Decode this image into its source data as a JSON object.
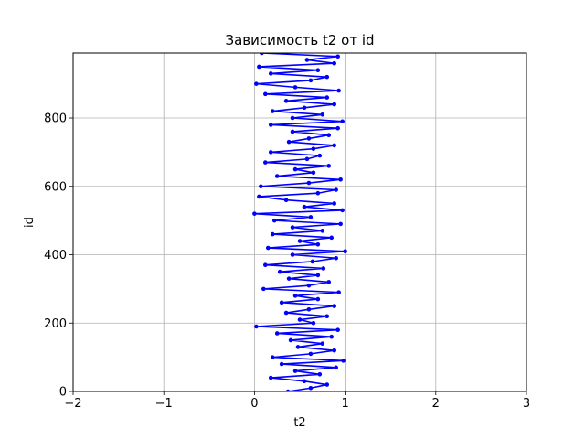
{
  "chart_data": {
    "type": "line",
    "title": "Зависимость t2 от id",
    "xlabel": "t2",
    "ylabel": "id",
    "xlim": [
      -2,
      3
    ],
    "ylim": [
      0,
      990
    ],
    "xticks": [
      -2,
      -1,
      0,
      1,
      2,
      3
    ],
    "xtick_labels": [
      "−2",
      "−1",
      "0",
      "1",
      "2",
      "3"
    ],
    "yticks": [
      0,
      200,
      400,
      600,
      800
    ],
    "ytick_labels": [
      "0",
      "200",
      "400",
      "600",
      "800"
    ],
    "grid": true,
    "series": [
      {
        "name": "",
        "color": "#0000ff",
        "marker": "circle",
        "points": [
          [
            0.37,
            0
          ],
          [
            0.62,
            10
          ],
          [
            0.8,
            20
          ],
          [
            0.55,
            30
          ],
          [
            0.18,
            40
          ],
          [
            0.72,
            50
          ],
          [
            0.45,
            60
          ],
          [
            0.9,
            70
          ],
          [
            0.3,
            80
          ],
          [
            0.98,
            90
          ],
          [
            0.2,
            100
          ],
          [
            0.62,
            110
          ],
          [
            0.88,
            120
          ],
          [
            0.48,
            130
          ],
          [
            0.75,
            140
          ],
          [
            0.4,
            150
          ],
          [
            0.85,
            160
          ],
          [
            0.25,
            170
          ],
          [
            0.92,
            180
          ],
          [
            0.02,
            190
          ],
          [
            0.65,
            200
          ],
          [
            0.5,
            210
          ],
          [
            0.8,
            220
          ],
          [
            0.35,
            230
          ],
          [
            0.6,
            240
          ],
          [
            0.88,
            250
          ],
          [
            0.3,
            260
          ],
          [
            0.7,
            270
          ],
          [
            0.45,
            280
          ],
          [
            0.93,
            290
          ],
          [
            0.1,
            300
          ],
          [
            0.6,
            310
          ],
          [
            0.82,
            320
          ],
          [
            0.38,
            330
          ],
          [
            0.7,
            340
          ],
          [
            0.28,
            350
          ],
          [
            0.76,
            360
          ],
          [
            0.12,
            370
          ],
          [
            0.64,
            380
          ],
          [
            0.9,
            390
          ],
          [
            0.42,
            400
          ],
          [
            1.0,
            410
          ],
          [
            0.15,
            420
          ],
          [
            0.7,
            430
          ],
          [
            0.5,
            440
          ],
          [
            0.85,
            450
          ],
          [
            0.2,
            460
          ],
          [
            0.75,
            470
          ],
          [
            0.42,
            480
          ],
          [
            0.95,
            490
          ],
          [
            0.22,
            500
          ],
          [
            0.62,
            510
          ],
          [
            0.0,
            520
          ],
          [
            0.97,
            530
          ],
          [
            0.55,
            540
          ],
          [
            0.88,
            550
          ],
          [
            0.35,
            560
          ],
          [
            0.05,
            570
          ],
          [
            0.7,
            580
          ],
          [
            0.9,
            590
          ],
          [
            0.07,
            600
          ],
          [
            0.6,
            610
          ],
          [
            0.95,
            620
          ],
          [
            0.25,
            630
          ],
          [
            0.65,
            640
          ],
          [
            0.45,
            650
          ],
          [
            0.82,
            660
          ],
          [
            0.12,
            670
          ],
          [
            0.58,
            680
          ],
          [
            0.72,
            690
          ],
          [
            0.18,
            700
          ],
          [
            0.65,
            710
          ],
          [
            0.88,
            720
          ],
          [
            0.38,
            730
          ],
          [
            0.6,
            740
          ],
          [
            0.82,
            750
          ],
          [
            0.42,
            760
          ],
          [
            0.92,
            770
          ],
          [
            0.18,
            780
          ],
          [
            0.97,
            790
          ],
          [
            0.42,
            800
          ],
          [
            0.75,
            810
          ],
          [
            0.2,
            820
          ],
          [
            0.55,
            830
          ],
          [
            0.88,
            840
          ],
          [
            0.35,
            850
          ],
          [
            0.8,
            860
          ],
          [
            0.12,
            870
          ],
          [
            0.93,
            880
          ],
          [
            0.45,
            890
          ],
          [
            0.02,
            900
          ],
          [
            0.62,
            910
          ],
          [
            0.8,
            920
          ],
          [
            0.18,
            930
          ],
          [
            0.7,
            940
          ],
          [
            0.05,
            950
          ],
          [
            0.88,
            960
          ],
          [
            0.58,
            970
          ],
          [
            0.92,
            980
          ],
          [
            0.08,
            990
          ]
        ]
      }
    ]
  }
}
